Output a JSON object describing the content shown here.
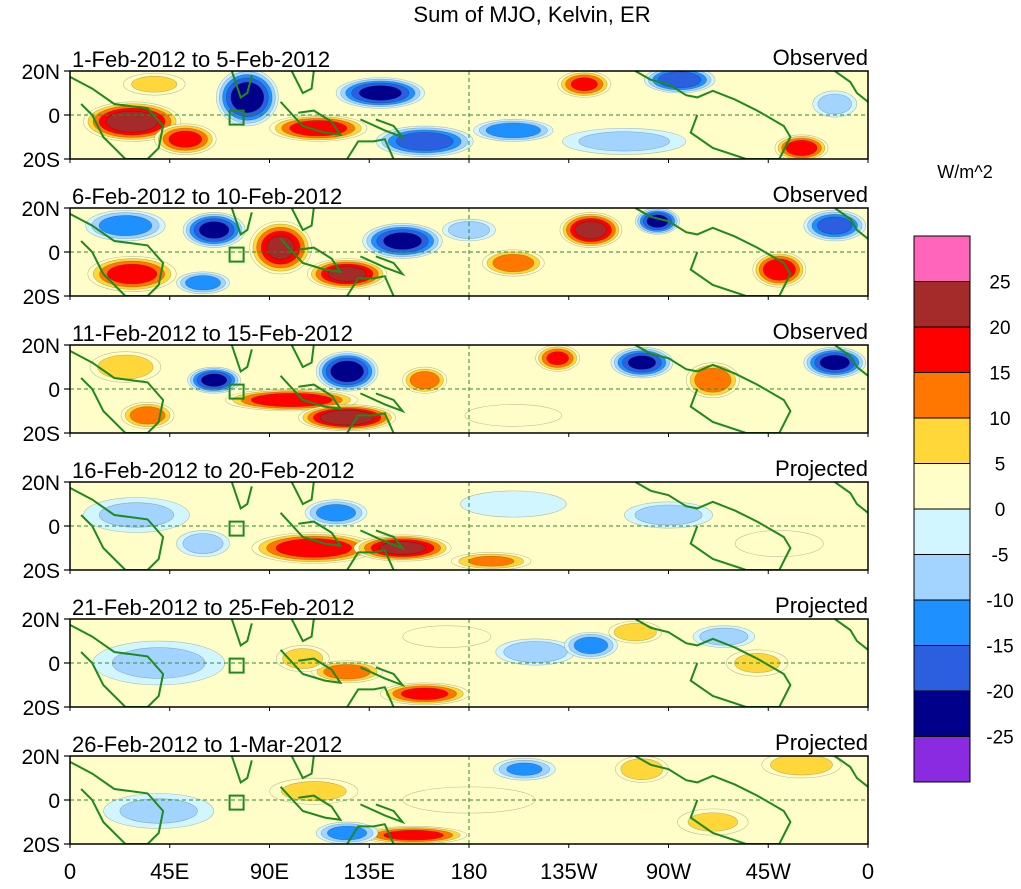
{
  "chart_data": {
    "type": "heatmap",
    "title": "Sum of MJO, Kelvin, ER",
    "units": "W/m^2",
    "x_ticks": [
      "0",
      "45E",
      "90E",
      "135E",
      "180",
      "135W",
      "90W",
      "45W",
      "0"
    ],
    "x_tick_lons": [
      0,
      45,
      90,
      135,
      180,
      225,
      270,
      315,
      360
    ],
    "y_ticks": [
      "20N",
      "0",
      "20S"
    ],
    "y_tick_lats": [
      20,
      0,
      -20
    ],
    "lon_range": [
      0,
      360
    ],
    "lat_range": [
      -20,
      20
    ],
    "colorbar": {
      "levels": [
        "25",
        "20",
        "15",
        "10",
        "5",
        "0",
        "-5",
        "-10",
        "-15",
        "-20",
        "-25"
      ],
      "colors": [
        "#ff66bb",
        "#a52a2a",
        "#ff0000",
        "#ff7700",
        "#ffd738",
        "#fffec8",
        "#d2f6ff",
        "#a2d4ff",
        "#1e90ff",
        "#2b5fe0",
        "#00008b",
        "#8a2be2"
      ]
    },
    "panels": [
      {
        "label": "1-Feb-2012 to 5-Feb-2012",
        "status": "Observed",
        "anomalies": [
          {
            "lon": 28,
            "lat": -3,
            "rx": 22,
            "ry": 9,
            "val": 24
          },
          {
            "lon": 52,
            "lat": -11,
            "rx": 14,
            "ry": 7,
            "val": 17
          },
          {
            "lon": 38,
            "lat": 14,
            "rx": 14,
            "ry": 5,
            "val": 7
          },
          {
            "lon": 80,
            "lat": 8,
            "rx": 14,
            "ry": 13,
            "val": -24
          },
          {
            "lon": 112,
            "lat": -6,
            "rx": 22,
            "ry": 6,
            "val": 19
          },
          {
            "lon": 140,
            "lat": 10,
            "rx": 20,
            "ry": 7,
            "val": -22
          },
          {
            "lon": 160,
            "lat": -12,
            "rx": 22,
            "ry": 7,
            "val": -19
          },
          {
            "lon": 200,
            "lat": -7,
            "rx": 18,
            "ry": 5,
            "val": -15
          },
          {
            "lon": 232,
            "lat": 14,
            "rx": 12,
            "ry": 6,
            "val": 16
          },
          {
            "lon": 275,
            "lat": 16,
            "rx": 16,
            "ry": 6,
            "val": -20
          },
          {
            "lon": 330,
            "lat": -15,
            "rx": 12,
            "ry": 6,
            "val": 19
          },
          {
            "lon": 250,
            "lat": -12,
            "rx": 28,
            "ry": 6,
            "val": -7
          },
          {
            "lon": 345,
            "lat": 5,
            "rx": 10,
            "ry": 6,
            "val": -8
          }
        ]
      },
      {
        "label": "6-Feb-2012 to 10-Feb-2012",
        "status": "Observed",
        "anomalies": [
          {
            "lon": 25,
            "lat": 12,
            "rx": 18,
            "ry": 7,
            "val": -14
          },
          {
            "lon": 28,
            "lat": -10,
            "rx": 20,
            "ry": 8,
            "val": 18
          },
          {
            "lon": 65,
            "lat": 10,
            "rx": 14,
            "ry": 8,
            "val": -22
          },
          {
            "lon": 95,
            "lat": 2,
            "rx": 14,
            "ry": 12,
            "val": 21
          },
          {
            "lon": 125,
            "lat": -10,
            "rx": 18,
            "ry": 7,
            "val": 22
          },
          {
            "lon": 150,
            "lat": 5,
            "rx": 18,
            "ry": 8,
            "val": -22
          },
          {
            "lon": 200,
            "lat": -5,
            "rx": 14,
            "ry": 6,
            "val": 14
          },
          {
            "lon": 235,
            "lat": 10,
            "rx": 14,
            "ry": 8,
            "val": 23
          },
          {
            "lon": 265,
            "lat": 14,
            "rx": 10,
            "ry": 6,
            "val": -22
          },
          {
            "lon": 320,
            "lat": -8,
            "rx": 12,
            "ry": 8,
            "val": 20
          },
          {
            "lon": 345,
            "lat": 12,
            "rx": 14,
            "ry": 7,
            "val": -18
          },
          {
            "lon": 60,
            "lat": -14,
            "rx": 12,
            "ry": 5,
            "val": -14
          },
          {
            "lon": 180,
            "lat": 10,
            "rx": 12,
            "ry": 5,
            "val": -9
          }
        ]
      },
      {
        "label": "11-Feb-2012 to 15-Feb-2012",
        "status": "Observed",
        "anomalies": [
          {
            "lon": 25,
            "lat": 10,
            "rx": 16,
            "ry": 7,
            "val": 9
          },
          {
            "lon": 35,
            "lat": -12,
            "rx": 12,
            "ry": 6,
            "val": 14
          },
          {
            "lon": 65,
            "lat": 4,
            "rx": 12,
            "ry": 6,
            "val": -22
          },
          {
            "lon": 100,
            "lat": -5,
            "rx": 30,
            "ry": 5,
            "val": 20
          },
          {
            "lon": 125,
            "lat": -13,
            "rx": 22,
            "ry": 6,
            "val": 25
          },
          {
            "lon": 125,
            "lat": 8,
            "rx": 14,
            "ry": 9,
            "val": -24
          },
          {
            "lon": 160,
            "lat": 4,
            "rx": 10,
            "ry": 6,
            "val": 14
          },
          {
            "lon": 220,
            "lat": 14,
            "rx": 10,
            "ry": 6,
            "val": 16
          },
          {
            "lon": 258,
            "lat": 12,
            "rx": 14,
            "ry": 7,
            "val": -21
          },
          {
            "lon": 290,
            "lat": 4,
            "rx": 12,
            "ry": 8,
            "val": 15
          },
          {
            "lon": 345,
            "lat": 12,
            "rx": 14,
            "ry": 7,
            "val": -22
          },
          {
            "lon": 200,
            "lat": -12,
            "rx": 22,
            "ry": 5,
            "val": 5
          }
        ]
      },
      {
        "label": "16-Feb-2012 to 20-Feb-2012",
        "status": "Projected",
        "anomalies": [
          {
            "lon": 110,
            "lat": -10,
            "rx": 28,
            "ry": 7,
            "val": 20
          },
          {
            "lon": 150,
            "lat": -10,
            "rx": 22,
            "ry": 6,
            "val": 22
          },
          {
            "lon": 120,
            "lat": 6,
            "rx": 14,
            "ry": 6,
            "val": -13
          },
          {
            "lon": 190,
            "lat": -16,
            "rx": 18,
            "ry": 4,
            "val": 11
          },
          {
            "lon": 30,
            "lat": 5,
            "rx": 24,
            "ry": 8,
            "val": -6
          },
          {
            "lon": 60,
            "lat": -8,
            "rx": 12,
            "ry": 6,
            "val": -8
          },
          {
            "lon": 270,
            "lat": 5,
            "rx": 20,
            "ry": 6,
            "val": -8
          },
          {
            "lon": 200,
            "lat": 10,
            "rx": 24,
            "ry": 6,
            "val": -5
          },
          {
            "lon": 320,
            "lat": -8,
            "rx": 20,
            "ry": 6,
            "val": 4
          }
        ]
      },
      {
        "label": "21-Feb-2012 to 25-Feb-2012",
        "status": "Projected",
        "anomalies": [
          {
            "lon": 125,
            "lat": -4,
            "rx": 16,
            "ry": 5,
            "val": 14
          },
          {
            "lon": 160,
            "lat": -14,
            "rx": 20,
            "ry": 5,
            "val": 17
          },
          {
            "lon": 105,
            "lat": 2,
            "rx": 12,
            "ry": 6,
            "val": 8
          },
          {
            "lon": 210,
            "lat": 5,
            "rx": 18,
            "ry": 6,
            "val": -10
          },
          {
            "lon": 235,
            "lat": 8,
            "rx": 12,
            "ry": 6,
            "val": -13
          },
          {
            "lon": 255,
            "lat": 14,
            "rx": 12,
            "ry": 5,
            "val": 10
          },
          {
            "lon": 295,
            "lat": 12,
            "rx": 14,
            "ry": 5,
            "val": -9
          },
          {
            "lon": 310,
            "lat": 0,
            "rx": 14,
            "ry": 6,
            "val": 7
          },
          {
            "lon": 40,
            "lat": 0,
            "rx": 30,
            "ry": 10,
            "val": -6
          },
          {
            "lon": 170,
            "lat": 12,
            "rx": 20,
            "ry": 5,
            "val": 5
          }
        ]
      },
      {
        "label": "26-Feb-2012 to 1-Mar-2012",
        "status": "Projected",
        "anomalies": [
          {
            "lon": 155,
            "lat": -16,
            "rx": 24,
            "ry": 4,
            "val": 18
          },
          {
            "lon": 125,
            "lat": -15,
            "rx": 14,
            "ry": 5,
            "val": -13
          },
          {
            "lon": 110,
            "lat": 4,
            "rx": 20,
            "ry": 6,
            "val": 7
          },
          {
            "lon": 205,
            "lat": 14,
            "rx": 14,
            "ry": 5,
            "val": -11
          },
          {
            "lon": 258,
            "lat": 14,
            "rx": 12,
            "ry": 6,
            "val": 10
          },
          {
            "lon": 330,
            "lat": 16,
            "rx": 18,
            "ry": 6,
            "val": 9
          },
          {
            "lon": 290,
            "lat": -10,
            "rx": 16,
            "ry": 6,
            "val": 6
          },
          {
            "lon": 40,
            "lat": -5,
            "rx": 25,
            "ry": 8,
            "val": -6
          },
          {
            "lon": 180,
            "lat": 0,
            "rx": 30,
            "ry": 6,
            "val": 4
          }
        ]
      }
    ]
  }
}
